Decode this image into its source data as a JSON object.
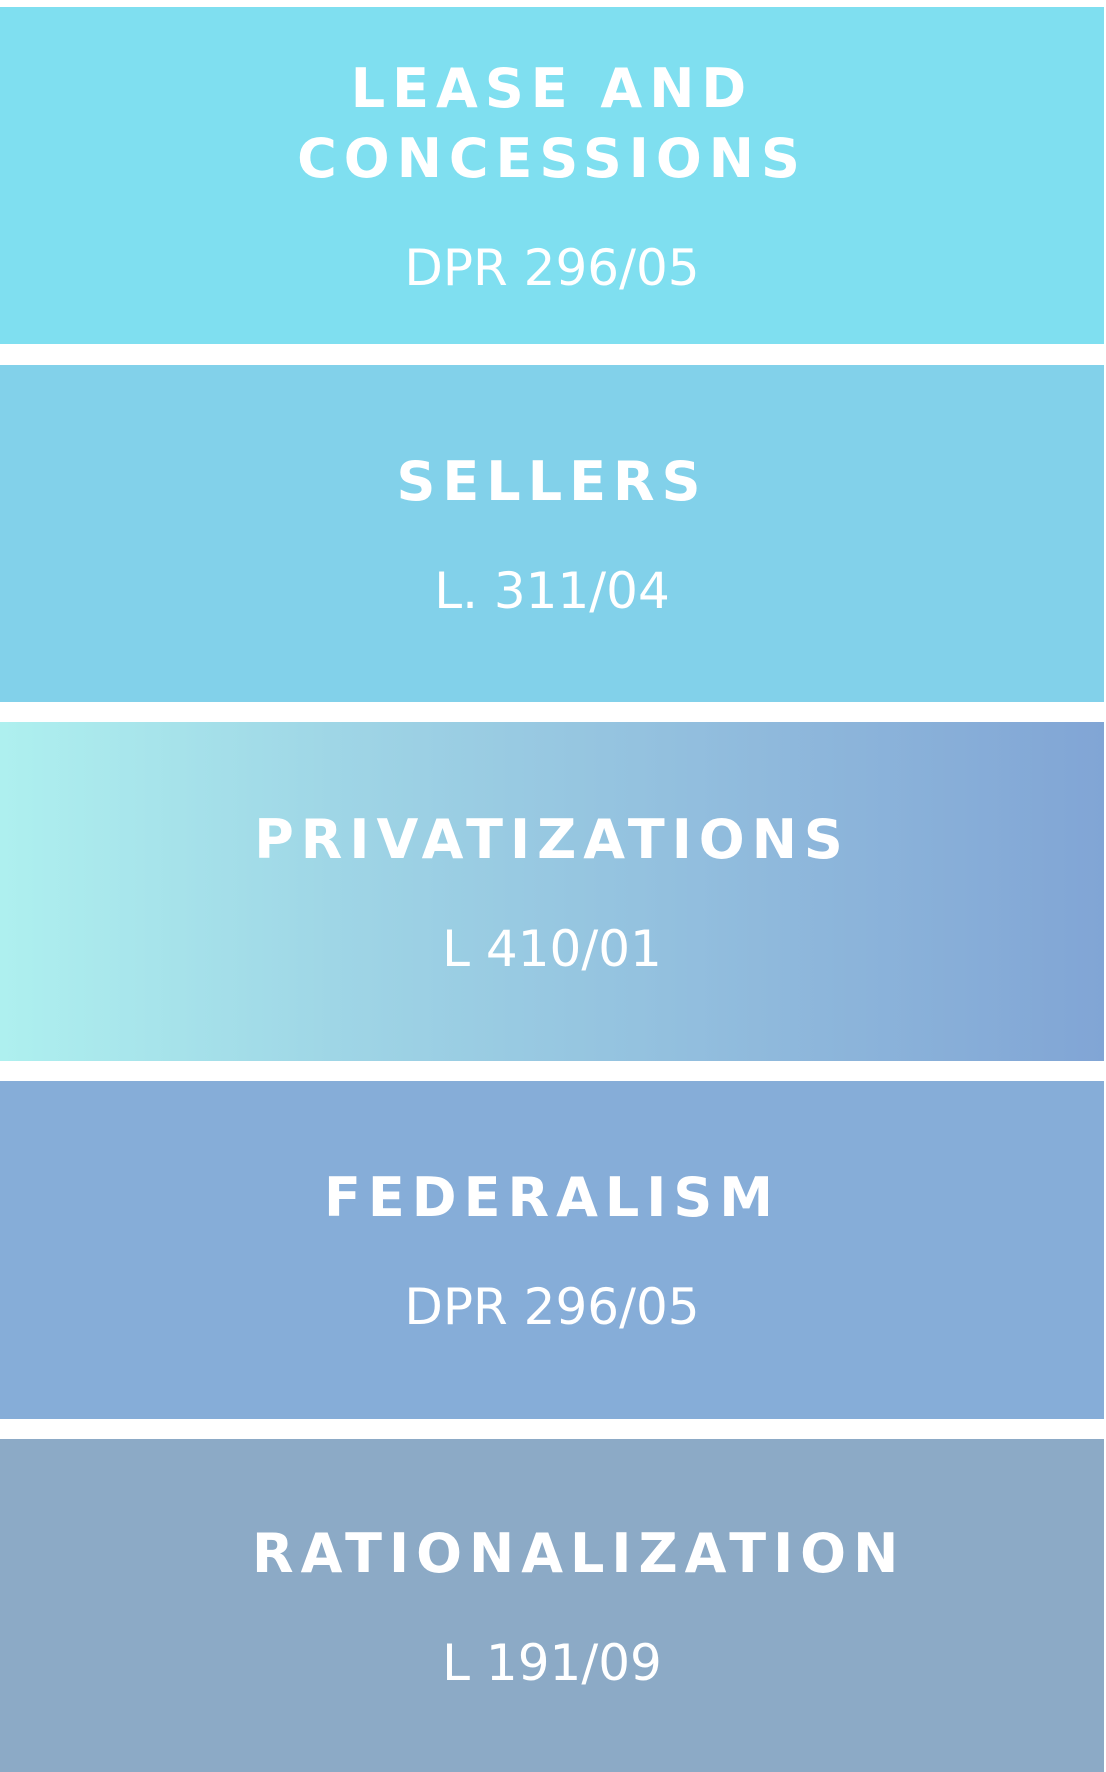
{
  "items": [
    {
      "title": "LEASE AND CONCESSIONS",
      "code": "DPR 296/05"
    },
    {
      "title": "SELLERS",
      "code": "L. 311/04"
    },
    {
      "title": "PRIVATIZATIONS",
      "code": "L 410/01"
    },
    {
      "title": "FEDERALISM",
      "code": "DPR 296/05"
    },
    {
      "title": "RATIONALIZATION",
      "code": "L 191/09"
    }
  ]
}
